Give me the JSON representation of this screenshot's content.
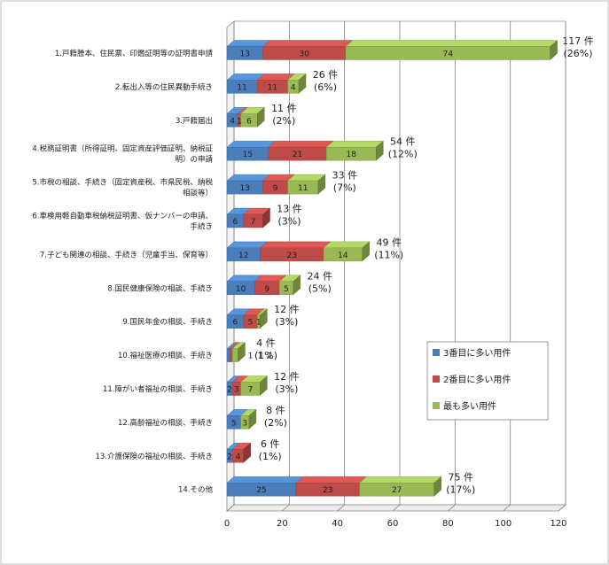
{
  "chart_data": {
    "type": "bar",
    "orientation": "horizontal",
    "stacked": true,
    "three_d": true,
    "categories": [
      [
        "1.戸籍謄本、住民票、印鑑証明等の証明書申請"
      ],
      [
        "2.転出入等の住民異動手続き"
      ],
      [
        "3.戸籍届出"
      ],
      [
        "4.税務証明書（所得証明、固定資産評価証明、納税証",
        "明）の申請"
      ],
      [
        "5.市税の相談、手続き（固定資産税、市県民税、納税",
        "相談等）"
      ],
      [
        "6.車検用軽自動車税納税証明書、仮ナンバーの申請、",
        "手続き"
      ],
      [
        "7.子ども関連の相談、手続き（児童手当、保育等）"
      ],
      [
        "8.国民健康保険の相談、手続き"
      ],
      [
        "9.国民年金の相談、手続き"
      ],
      [
        "10.福祉医療の相談、手続き"
      ],
      [
        "11.障がい者福祉の相談、手続き"
      ],
      [
        "12.高齢福祉の相談、手続き"
      ],
      [
        "13.介護保険の福祉の相談、手続き"
      ],
      [
        "14.その他"
      ]
    ],
    "series": [
      {
        "name": "3番目に多い用件",
        "color": "#4a7ebb",
        "values": [
          13,
          11,
          4,
          15,
          13,
          6,
          12,
          10,
          6,
          1,
          2,
          5,
          2,
          25
        ],
        "labels": [
          "13",
          "11",
          "4",
          "15",
          "13",
          "6",
          "12",
          "10",
          "6",
          "1",
          "2",
          "5",
          "2",
          "25"
        ]
      },
      {
        "name": "2番目に多い用件",
        "color": "#be4b48",
        "values": [
          30,
          11,
          1,
          21,
          9,
          7,
          23,
          9,
          5,
          1,
          3,
          0,
          4,
          23
        ],
        "labels": [
          "30",
          "11",
          "1",
          "21",
          "9",
          "7",
          "23",
          "9",
          "5",
          "1",
          "3",
          "",
          "4",
          "23"
        ]
      },
      {
        "name": "最も多い用件",
        "color": "#98b954",
        "values": [
          74,
          4,
          6,
          18,
          11,
          0,
          14,
          5,
          1,
          2,
          7,
          3,
          0,
          27
        ],
        "labels": [
          "74",
          "4",
          "6",
          "18",
          "11",
          "",
          "14",
          "5",
          "1",
          "2",
          "7",
          "3",
          "",
          "27"
        ]
      }
    ],
    "totals": [
      {
        "count": "117 件",
        "percent": "(26%)"
      },
      {
        "count": "26 件",
        "percent": "(6%)"
      },
      {
        "count": "11 件",
        "percent": "(2%)"
      },
      {
        "count": "54 件",
        "percent": "(12%)"
      },
      {
        "count": "33 件",
        "percent": "(7%)"
      },
      {
        "count": "13 件",
        "percent": "(3%)"
      },
      {
        "count": "49 件",
        "percent": "(11%)"
      },
      {
        "count": "24 件",
        "percent": "(5%)"
      },
      {
        "count": "12 件",
        "percent": "(3%)"
      },
      {
        "count": "4 件",
        "percent": "(1%)"
      },
      {
        "count": "12 件",
        "percent": "(3%)"
      },
      {
        "count": "8 件",
        "percent": "(2%)"
      },
      {
        "count": "6 件",
        "percent": "(1%)"
      },
      {
        "count": "75 件",
        "percent": "(17%)"
      }
    ],
    "xlim": [
      0,
      120
    ],
    "xticks": [
      0,
      20,
      40,
      60,
      80,
      100,
      120
    ],
    "grid": true,
    "legend": "lower-right",
    "title": "",
    "xlabel": "",
    "ylabel": ""
  }
}
